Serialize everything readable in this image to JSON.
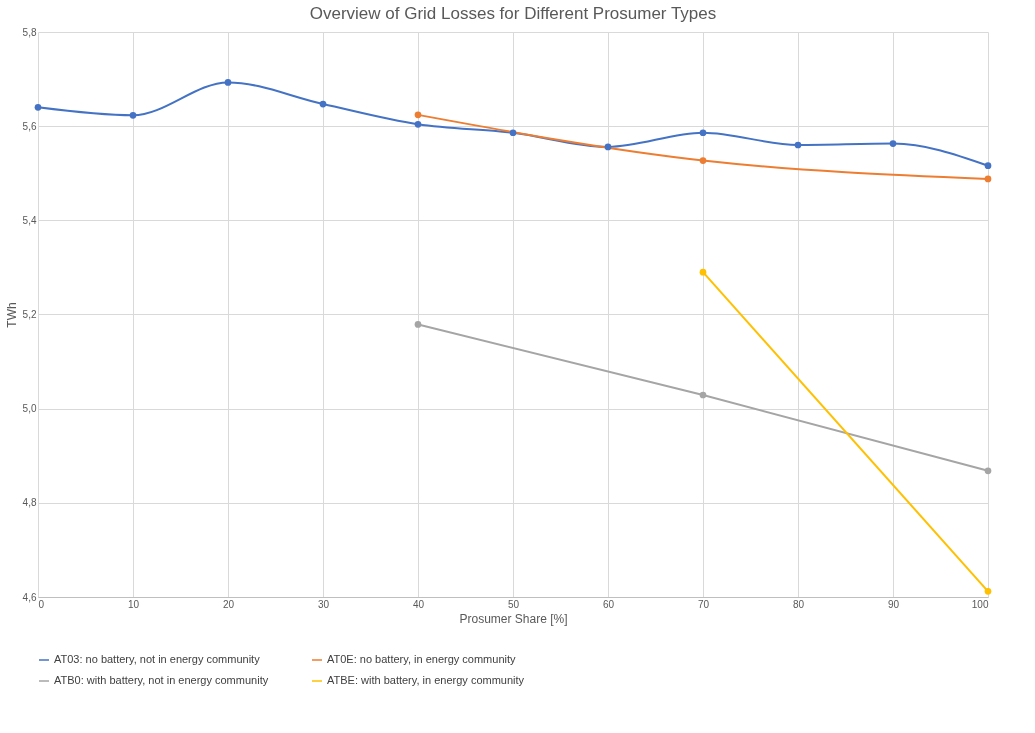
{
  "chart_data": {
    "type": "line",
    "title": "Overview of Grid Losses for Different Prosumer Types",
    "xlabel": "Prosumer Share [%]",
    "ylabel": "TWh",
    "xlim": [
      0,
      100
    ],
    "xticks": [
      0,
      10,
      20,
      30,
      40,
      50,
      60,
      70,
      80,
      90,
      100
    ],
    "ylim": [
      4.6,
      5.8
    ],
    "yticks": [
      {
        "value": 4.6,
        "label": "4,6"
      },
      {
        "value": 4.8,
        "label": "4,8"
      },
      {
        "value": 5.0,
        "label": "5,0"
      },
      {
        "value": 5.2,
        "label": "5,2"
      },
      {
        "value": 5.4,
        "label": "5,4"
      },
      {
        "value": 5.6,
        "label": "5,6"
      },
      {
        "value": 5.8,
        "label": "5,8"
      }
    ],
    "grid": true,
    "legend": "bottom",
    "marker": "circle",
    "line_style": "solid",
    "series": [
      {
        "name": "AT03: no battery, not in energy community",
        "color": "#4472c4",
        "x": [
          0,
          10,
          20,
          30,
          40,
          50,
          60,
          70,
          80,
          90,
          100
        ],
        "values": [
          5.64,
          5.623,
          5.693,
          5.647,
          5.604,
          5.586,
          5.556,
          5.586,
          5.56,
          5.563,
          5.516
        ]
      },
      {
        "name": "AT0E: no battery, in energy community",
        "color": "#ed7d31",
        "x": [
          40,
          60,
          70,
          100
        ],
        "values": [
          5.624,
          null,
          5.527,
          5.488
        ]
      },
      {
        "name": "ATB0: with battery, not in energy community",
        "color": "#a5a5a5",
        "x": [
          40,
          70,
          100
        ],
        "values": [
          5.179,
          5.029,
          4.868
        ]
      },
      {
        "name": "ATBE: with battery, in energy community",
        "color": "#ffc000",
        "x": [
          70,
          100
        ],
        "values": [
          5.29,
          4.612
        ]
      }
    ]
  }
}
